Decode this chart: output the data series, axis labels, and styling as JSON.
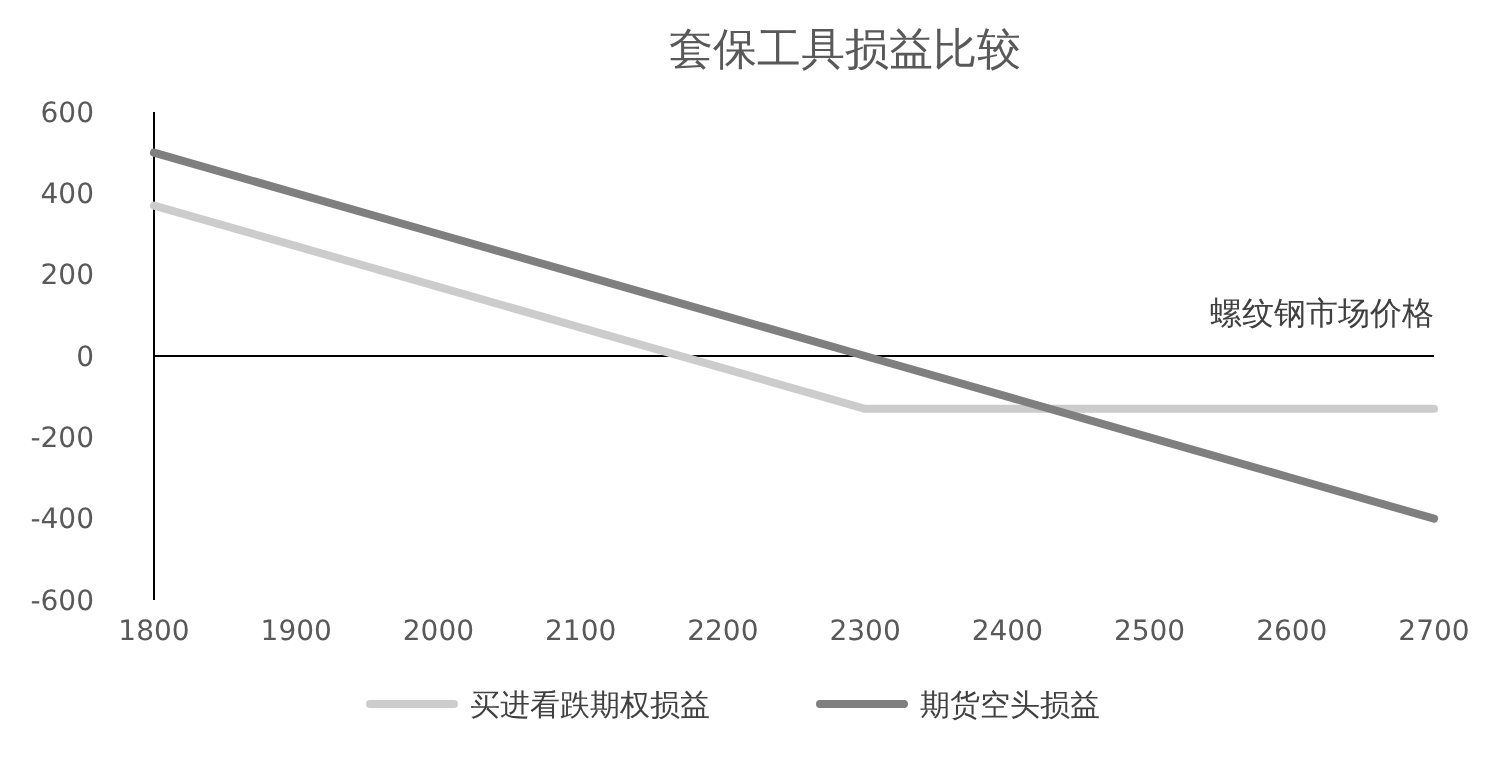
{
  "chart_data": {
    "type": "line",
    "title": "套保工具损益比较",
    "xlabel": "螺纹钢市场价格",
    "x": [
      1800,
      1900,
      2000,
      2100,
      2200,
      2300,
      2400,
      2500,
      2600,
      2700
    ],
    "xlim": [
      1800,
      2700
    ],
    "xticks": [
      1800,
      1900,
      2000,
      2100,
      2200,
      2300,
      2400,
      2500,
      2600,
      2700
    ],
    "ylim": [
      -600,
      600
    ],
    "yticks": [
      -600,
      -400,
      -200,
      0,
      200,
      400,
      600
    ],
    "series": [
      {
        "name": "买进看跌期权损益",
        "color": "#cccccc",
        "values": [
          370,
          270,
          170,
          70,
          -30,
          -130,
          -130,
          -130,
          -130,
          -130
        ]
      },
      {
        "name": "期货空头损益",
        "color": "#7f7f7f",
        "values": [
          500,
          400,
          300,
          200,
          100,
          0,
          -100,
          -200,
          -300,
          -400
        ]
      }
    ],
    "legend": "bottom",
    "marker": "none",
    "line_style": "solid"
  }
}
